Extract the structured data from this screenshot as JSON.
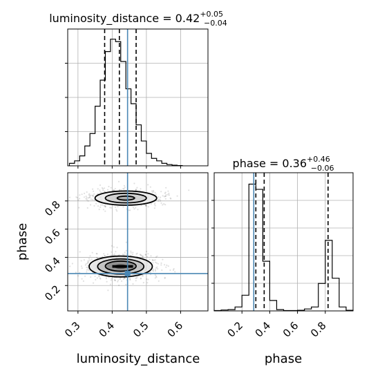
{
  "chart_data": {
    "type": "corner",
    "parameters": [
      "luminosity_distance",
      "phase"
    ],
    "truths": {
      "luminosity_distance": 0.445,
      "phase": 0.285
    },
    "panels": [
      {
        "id": "hist-luminosity_distance",
        "type": "histogram",
        "title": "luminosity_distance = 0.42",
        "title_sup": "+0.05",
        "title_sub": "−0.04",
        "xlim": [
          0.27,
          0.68
        ],
        "grid": true,
        "bin_edges": [
          0.275,
          0.29,
          0.305,
          0.32,
          0.335,
          0.35,
          0.365,
          0.38,
          0.395,
          0.41,
          0.425,
          0.44,
          0.455,
          0.47,
          0.485,
          0.5,
          0.515,
          0.53,
          0.545,
          0.56,
          0.575,
          0.59,
          0.605
        ],
        "counts": [
          2,
          4,
          8,
          16,
          26,
          48,
          69,
          92,
          102,
          100,
          84,
          62,
          50,
          33,
          20,
          10,
          6,
          4,
          2,
          1,
          0.5,
          0.2
        ],
        "quantiles": [
          0.378,
          0.421,
          0.47
        ],
        "truth": 0.445
      },
      {
        "id": "hist-phase",
        "type": "histogram",
        "title": "phase = 0.36",
        "title_sup": "+0.46",
        "title_sub": "−0.06",
        "xlim": [
          0.0,
          1.0
        ],
        "xticks": [
          "0.2",
          "0.4",
          "0.6",
          "0.8"
        ],
        "xlabel": "phase",
        "grid": true,
        "bin_edges": [
          0.0,
          0.05,
          0.1,
          0.15,
          0.2,
          0.25,
          0.3,
          0.35,
          0.4,
          0.45,
          0.5,
          0.55,
          0.6,
          0.65,
          0.7,
          0.75,
          0.8,
          0.85,
          0.9,
          0.95,
          1.0
        ],
        "counts": [
          0.3,
          0.7,
          1,
          3,
          12,
          97,
          93,
          38,
          8,
          1,
          0.3,
          0.3,
          0.5,
          1.5,
          3,
          21,
          54,
          25,
          3,
          0.5
        ],
        "quantiles": [
          0.3,
          0.36,
          0.82
        ],
        "truth": 0.285
      },
      {
        "id": "scatter-phase-vs-luminosity_distance",
        "type": "scatter-contour",
        "xlim": [
          0.27,
          0.68
        ],
        "ylim": [
          0.02,
          1.0
        ],
        "xticks": [
          "0.3",
          "0.4",
          "0.5",
          "0.6"
        ],
        "yticks": [
          "0.2",
          "0.4",
          "0.6",
          "0.8"
        ],
        "xlabel": "luminosity_distance",
        "ylabel": "phase",
        "grid": true,
        "modes": [
          {
            "x": 0.425,
            "y": 0.335,
            "sx": 0.045,
            "sy": 0.045,
            "weight": 0.68
          },
          {
            "x": 0.44,
            "y": 0.82,
            "sx": 0.05,
            "sy": 0.035,
            "weight": 0.32
          }
        ],
        "truth": [
          0.445,
          0.285
        ]
      }
    ]
  }
}
